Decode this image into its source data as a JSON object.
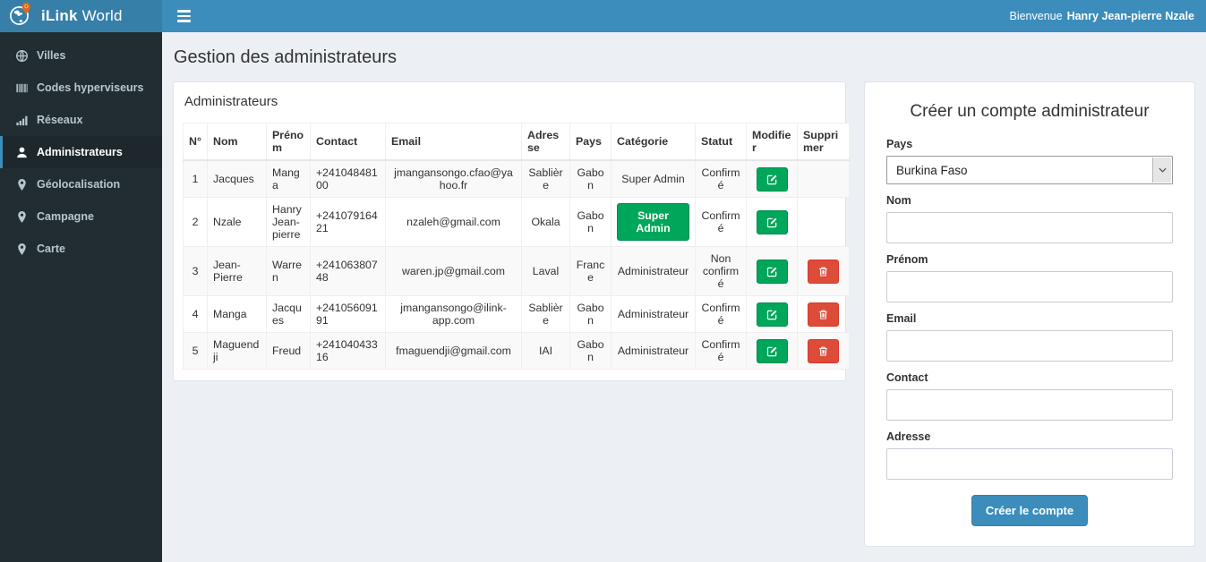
{
  "app": {
    "brand_bold": "iLink",
    "brand_regular": " World",
    "welcome_prefix": "Bienvenue",
    "welcome_name": "Hanry Jean-pierre Nzale"
  },
  "sidebar": {
    "items": [
      {
        "id": "villes",
        "label": "Villes",
        "icon": "globe-icon",
        "active": false
      },
      {
        "id": "codes-hyperviseurs",
        "label": "Codes hyperviseurs",
        "icon": "barcode-icon",
        "active": false
      },
      {
        "id": "reseaux",
        "label": "Réseaux",
        "icon": "signal-bars-icon",
        "active": false
      },
      {
        "id": "administrateurs",
        "label": "Administrateurs",
        "icon": "user-icon",
        "active": true
      },
      {
        "id": "geolocalisation",
        "label": "Géolocalisation",
        "icon": "map-marker-icon",
        "active": false
      },
      {
        "id": "campagne",
        "label": "Campagne",
        "icon": "map-marker-icon",
        "active": false
      },
      {
        "id": "carte",
        "label": "Carte",
        "icon": "map-marker-icon",
        "active": false
      }
    ]
  },
  "page": {
    "title": "Gestion des administrateurs"
  },
  "table_panel": {
    "title": "Administrateurs",
    "columns": [
      "N°",
      "Nom",
      "Prénom",
      "Contact",
      "Email",
      "Adresse",
      "Pays",
      "Catégorie",
      "Statut",
      "Modifier",
      "Supprimer"
    ],
    "rows": [
      {
        "no": "1",
        "nom": "Jacques",
        "prenom": "Manga",
        "contact": "+24104848100",
        "email": "jmangansongo.cfao@yahoo.fr",
        "adresse": "Sablière",
        "pays": "Gabon",
        "categorie": "Super Admin",
        "categorie_badge": false,
        "statut": "Confirmé",
        "has_delete": false
      },
      {
        "no": "2",
        "nom": "Nzale",
        "prenom": "Hanry Jean-pierre",
        "contact": "+24107916421",
        "email": "nzaleh@gmail.com",
        "adresse": "Okala",
        "pays": "Gabon",
        "categorie": "Super Admin",
        "categorie_badge": true,
        "statut": "Confirmé",
        "has_delete": false
      },
      {
        "no": "3",
        "nom": "Jean-Pierre",
        "prenom": "Warren",
        "contact": "+24106380748",
        "email": "waren.jp@gmail.com",
        "adresse": "Laval",
        "pays": "France",
        "categorie": "Administrateur",
        "categorie_badge": false,
        "statut": "Non confirmé",
        "has_delete": true
      },
      {
        "no": "4",
        "nom": "Manga",
        "prenom": "Jacques",
        "contact": "+24105609191",
        "email": "jmangansongo@ilink-app.com",
        "adresse": "Sablière",
        "pays": "Gabon",
        "categorie": "Administrateur",
        "categorie_badge": false,
        "statut": "Confirmé",
        "has_delete": true
      },
      {
        "no": "5",
        "nom": "Maguendji",
        "prenom": "Freud",
        "contact": "+24104043316",
        "email": "fmaguendji@gmail.com",
        "adresse": "IAI",
        "pays": "Gabon",
        "categorie": "Administrateur",
        "categorie_badge": false,
        "statut": "Confirmé",
        "has_delete": true
      }
    ]
  },
  "form_panel": {
    "title": "Créer un compte administrateur",
    "fields": [
      {
        "name": "pays",
        "label": "Pays",
        "type": "select",
        "value": "Burkina Faso"
      },
      {
        "name": "nom",
        "label": "Nom",
        "type": "text",
        "value": ""
      },
      {
        "name": "prenom",
        "label": "Prénom",
        "type": "text",
        "value": ""
      },
      {
        "name": "email",
        "label": "Email",
        "type": "text",
        "value": ""
      },
      {
        "name": "contact",
        "label": "Contact",
        "type": "text",
        "value": ""
      },
      {
        "name": "adresse",
        "label": "Adresse",
        "type": "text",
        "value": ""
      }
    ],
    "submit_label": "Créer le compte"
  },
  "colors": {
    "navbar": "#3c8dbc",
    "logo_bg": "#367fa9",
    "sidebar_bg": "#222d32",
    "sidebar_active_bg": "#1e282c",
    "content_bg": "#ecf0f5",
    "success_green": "#00a65a",
    "danger_red": "#dd4b39",
    "pin_orange": "#e8641b"
  }
}
